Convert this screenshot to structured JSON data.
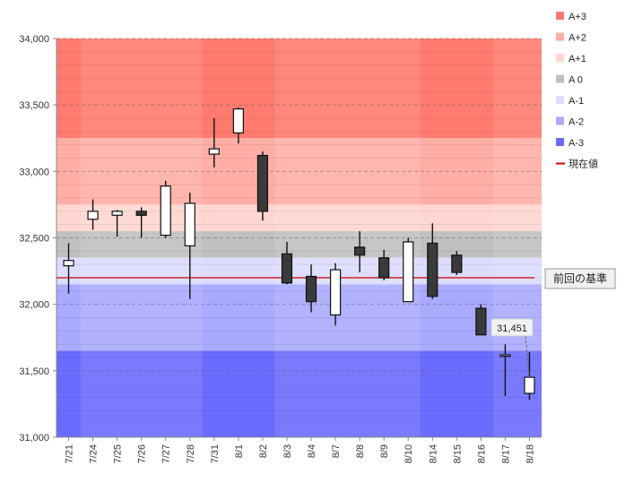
{
  "chart_data": {
    "type": "candlestick",
    "title": "",
    "xlabel": "",
    "ylabel": "",
    "ylim": [
      31000,
      34000
    ],
    "ytick_step": 500,
    "categories": [
      "7/21",
      "7/24",
      "7/25",
      "7/26",
      "7/27",
      "7/28",
      "7/31",
      "8/1",
      "8/2",
      "8/3",
      "8/4",
      "8/7",
      "8/8",
      "8/9",
      "8/10",
      "8/14",
      "8/15",
      "8/16",
      "8/17",
      "8/18"
    ],
    "candles": [
      {
        "open": 32290,
        "high": 32460,
        "low": 32080,
        "close": 32330
      },
      {
        "open": 32640,
        "high": 32790,
        "low": 32560,
        "close": 32700
      },
      {
        "open": 32670,
        "high": 32710,
        "low": 32510,
        "close": 32700
      },
      {
        "open": 32700,
        "high": 32730,
        "low": 32500,
        "close": 32670
      },
      {
        "open": 32520,
        "high": 32930,
        "low": 32500,
        "close": 32890
      },
      {
        "open": 32440,
        "high": 32840,
        "low": 32040,
        "close": 32760
      },
      {
        "open": 33130,
        "high": 33400,
        "low": 33030,
        "close": 33170
      },
      {
        "open": 33290,
        "high": 33480,
        "low": 33210,
        "close": 33470
      },
      {
        "open": 33120,
        "high": 33150,
        "low": 32630,
        "close": 32700
      },
      {
        "open": 32380,
        "high": 32470,
        "low": 32150,
        "close": 32160
      },
      {
        "open": 32210,
        "high": 32300,
        "low": 31940,
        "close": 32020
      },
      {
        "open": 31920,
        "high": 32310,
        "low": 31840,
        "close": 32260
      },
      {
        "open": 32430,
        "high": 32550,
        "low": 32240,
        "close": 32370
      },
      {
        "open": 32350,
        "high": 32410,
        "low": 32180,
        "close": 32200
      },
      {
        "open": 32020,
        "high": 32500,
        "low": 32020,
        "close": 32470
      },
      {
        "open": 32460,
        "high": 32610,
        "low": 32040,
        "close": 32060
      },
      {
        "open": 32370,
        "high": 32400,
        "low": 32220,
        "close": 32240
      },
      {
        "open": 31970,
        "high": 32000,
        "low": 31770,
        "close": 31770
      },
      {
        "open": 31620,
        "high": 31700,
        "low": 31310,
        "close": 31620
      },
      {
        "open": 31330,
        "high": 31640,
        "low": 31280,
        "close": 31451
      }
    ],
    "bands": [
      {
        "name": "A+3",
        "from": 33250,
        "to": 34000,
        "color": "#ff7b6f"
      },
      {
        "name": "A+2",
        "from": 32750,
        "to": 33250,
        "color": "#ffaea6"
      },
      {
        "name": "A+1",
        "from": 32550,
        "to": 32750,
        "color": "#ffd6d1"
      },
      {
        "name": "A 0",
        "from": 32350,
        "to": 32550,
        "color": "#c0c0c0"
      },
      {
        "name": "A-1",
        "from": 32150,
        "to": 32350,
        "color": "#dcdcfd"
      },
      {
        "name": "A-2",
        "from": 31650,
        "to": 32150,
        "color": "#aaaaff"
      },
      {
        "name": "A-3",
        "from": 31000,
        "to": 31650,
        "color": "#6b6bff"
      }
    ],
    "reference_line": {
      "name": "現在値",
      "value": 32200,
      "color": "#cc0000"
    },
    "reference_label": "前回の基準",
    "last_value_label": "31,451",
    "up_color": "#ffffff",
    "down_color": "#3a3a3a",
    "legend_position": "top-right"
  }
}
